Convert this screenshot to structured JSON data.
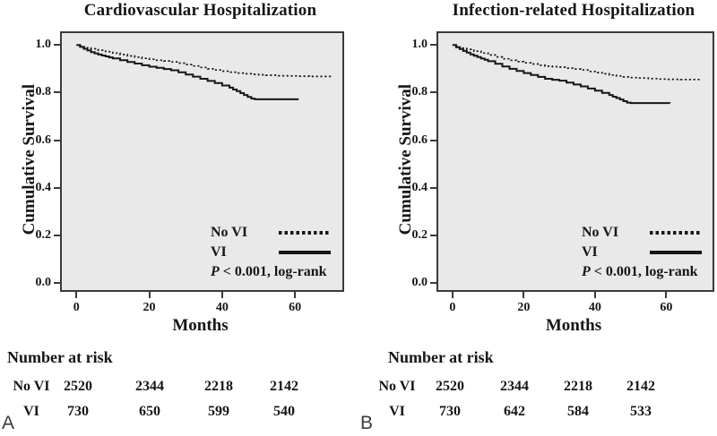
{
  "colors": {
    "plot_background": "#e9e9e9",
    "axis": "#3a3a3a",
    "curve": "#161616",
    "panel_letter": "#3c3c3c"
  },
  "chart_data": [
    {
      "type": "line",
      "subtype": "kaplan-meier-step",
      "panel_label": "A",
      "title": "Cardiovascular Hospitalization",
      "xlabel": "Months",
      "ylabel": "Cumulative Survival",
      "xlim": [
        -4,
        73
      ],
      "ylim": [
        -0.03,
        1.05
      ],
      "grid": false,
      "legend_position": "inside lower-right",
      "xticks": [
        {
          "v": 0,
          "label": "0"
        },
        {
          "v": 20,
          "label": "20"
        },
        {
          "v": 40,
          "label": "40"
        },
        {
          "v": 60,
          "label": "60"
        }
      ],
      "yticks": [
        {
          "v": 1.0,
          "label": "1.0"
        },
        {
          "v": 0.8,
          "label": "0.8"
        },
        {
          "v": 0.6,
          "label": "0.6"
        },
        {
          "v": 0.4,
          "label": "0.4"
        },
        {
          "v": 0.2,
          "label": "0.2"
        },
        {
          "v": 0.0,
          "label": "0.0"
        }
      ],
      "p_value": {
        "italic": "P",
        "text": " < 0.001, log-rank"
      },
      "series": [
        {
          "name": "No VI",
          "style": "dotted",
          "points": [
            [
              0,
              1.0
            ],
            [
              1,
              0.996
            ],
            [
              2,
              0.992
            ],
            [
              3,
              0.988
            ],
            [
              4,
              0.984
            ],
            [
              6,
              0.978
            ],
            [
              8,
              0.972
            ],
            [
              10,
              0.966
            ],
            [
              12,
              0.96
            ],
            [
              14,
              0.954
            ],
            [
              16,
              0.949
            ],
            [
              18,
              0.944
            ],
            [
              20,
              0.94
            ],
            [
              22,
              0.936
            ],
            [
              24,
              0.933
            ],
            [
              26,
              0.929
            ],
            [
              28,
              0.924
            ],
            [
              30,
              0.918
            ],
            [
              32,
              0.912
            ],
            [
              34,
              0.906
            ],
            [
              36,
              0.9
            ],
            [
              38,
              0.895
            ],
            [
              40,
              0.89
            ],
            [
              42,
              0.886
            ],
            [
              44,
              0.882
            ],
            [
              46,
              0.879
            ],
            [
              48,
              0.877
            ],
            [
              50,
              0.875
            ],
            [
              52,
              0.873
            ],
            [
              55,
              0.871
            ],
            [
              58,
              0.87
            ],
            [
              61,
              0.869
            ],
            [
              64,
              0.868
            ],
            [
              70,
              0.867
            ]
          ]
        },
        {
          "name": "VI",
          "style": "solid",
          "points": [
            [
              0,
              1.0
            ],
            [
              1,
              0.992
            ],
            [
              2,
              0.984
            ],
            [
              3,
              0.977
            ],
            [
              4,
              0.97
            ],
            [
              5,
              0.965
            ],
            [
              6,
              0.96
            ],
            [
              7,
              0.956
            ],
            [
              8,
              0.952
            ],
            [
              9,
              0.948
            ],
            [
              10,
              0.944
            ],
            [
              12,
              0.936
            ],
            [
              14,
              0.929
            ],
            [
              16,
              0.922
            ],
            [
              18,
              0.915
            ],
            [
              20,
              0.909
            ],
            [
              22,
              0.904
            ],
            [
              24,
              0.899
            ],
            [
              26,
              0.894
            ],
            [
              28,
              0.885
            ],
            [
              30,
              0.876
            ],
            [
              32,
              0.867
            ],
            [
              34,
              0.858
            ],
            [
              36,
              0.849
            ],
            [
              38,
              0.84
            ],
            [
              40,
              0.83
            ],
            [
              42,
              0.821
            ],
            [
              43,
              0.813
            ],
            [
              44,
              0.806
            ],
            [
              45,
              0.798
            ],
            [
              46,
              0.79
            ],
            [
              47,
              0.782
            ],
            [
              48,
              0.775
            ],
            [
              49,
              0.772
            ],
            [
              61,
              0.772
            ]
          ]
        }
      ],
      "number_at_risk": {
        "heading": "Number at risk",
        "timepoints": [
          0,
          20,
          40,
          60
        ],
        "rows": [
          {
            "label": "No VI",
            "values": [
              "2520",
              "2344",
              "2218",
              "2142"
            ]
          },
          {
            "label": "VI",
            "values": [
              "730",
              "650",
              "599",
              "540"
            ]
          }
        ]
      }
    },
    {
      "type": "line",
      "subtype": "kaplan-meier-step",
      "panel_label": "B",
      "title": "Infection-related Hospitalization",
      "xlabel": "Months",
      "ylabel": "Cumulative Survival",
      "xlim": [
        -4,
        73
      ],
      "ylim": [
        -0.03,
        1.05
      ],
      "grid": false,
      "legend_position": "inside lower-right",
      "xticks": [
        {
          "v": 0,
          "label": "0"
        },
        {
          "v": 20,
          "label": "20"
        },
        {
          "v": 40,
          "label": "40"
        },
        {
          "v": 60,
          "label": "60"
        }
      ],
      "yticks": [
        {
          "v": 1.0,
          "label": "1.0"
        },
        {
          "v": 0.8,
          "label": "0.8"
        },
        {
          "v": 0.6,
          "label": "0.6"
        },
        {
          "v": 0.4,
          "label": "0.4"
        },
        {
          "v": 0.2,
          "label": "0.2"
        },
        {
          "v": 0.0,
          "label": "0.0"
        }
      ],
      "p_value": {
        "italic": "P",
        "text": " < 0.001, log-rank"
      },
      "series": [
        {
          "name": "No VI",
          "style": "dotted",
          "points": [
            [
              0,
              1.0
            ],
            [
              1,
              0.995
            ],
            [
              2,
              0.991
            ],
            [
              3,
              0.986
            ],
            [
              4,
              0.982
            ],
            [
              6,
              0.974
            ],
            [
              8,
              0.966
            ],
            [
              10,
              0.958
            ],
            [
              12,
              0.95
            ],
            [
              14,
              0.942
            ],
            [
              16,
              0.936
            ],
            [
              18,
              0.93
            ],
            [
              20,
              0.925
            ],
            [
              22,
              0.92
            ],
            [
              24,
              0.915
            ],
            [
              26,
              0.911
            ],
            [
              28,
              0.909
            ],
            [
              30,
              0.907
            ],
            [
              32,
              0.903
            ],
            [
              34,
              0.899
            ],
            [
              36,
              0.895
            ],
            [
              38,
              0.889
            ],
            [
              40,
              0.884
            ],
            [
              42,
              0.879
            ],
            [
              44,
              0.874
            ],
            [
              46,
              0.87
            ],
            [
              48,
              0.866
            ],
            [
              50,
              0.863
            ],
            [
              52,
              0.861
            ],
            [
              55,
              0.859
            ],
            [
              58,
              0.857
            ],
            [
              60,
              0.856
            ],
            [
              64,
              0.855
            ],
            [
              70,
              0.855
            ]
          ]
        },
        {
          "name": "VI",
          "style": "solid",
          "points": [
            [
              0,
              1.0
            ],
            [
              1,
              0.991
            ],
            [
              2,
              0.983
            ],
            [
              3,
              0.975
            ],
            [
              4,
              0.968
            ],
            [
              5,
              0.961
            ],
            [
              6,
              0.955
            ],
            [
              7,
              0.949
            ],
            [
              8,
              0.943
            ],
            [
              9,
              0.938
            ],
            [
              10,
              0.932
            ],
            [
              12,
              0.921
            ],
            [
              14,
              0.91
            ],
            [
              16,
              0.9
            ],
            [
              18,
              0.891
            ],
            [
              20,
              0.882
            ],
            [
              22,
              0.874
            ],
            [
              24,
              0.866
            ],
            [
              26,
              0.858
            ],
            [
              28,
              0.854
            ],
            [
              30,
              0.85
            ],
            [
              32,
              0.842
            ],
            [
              34,
              0.834
            ],
            [
              36,
              0.826
            ],
            [
              38,
              0.817
            ],
            [
              40,
              0.808
            ],
            [
              42,
              0.799
            ],
            [
              44,
              0.79
            ],
            [
              45,
              0.783
            ],
            [
              46,
              0.777
            ],
            [
              47,
              0.771
            ],
            [
              48,
              0.764
            ],
            [
              49,
              0.758
            ],
            [
              50,
              0.756
            ],
            [
              61,
              0.755
            ]
          ]
        }
      ],
      "number_at_risk": {
        "heading": "Number at risk",
        "timepoints": [
          0,
          20,
          40,
          60
        ],
        "rows": [
          {
            "label": "No VI",
            "values": [
              "2520",
              "2344",
              "2218",
              "2142"
            ]
          },
          {
            "label": "VI",
            "values": [
              "730",
              "642",
              "584",
              "533"
            ]
          }
        ]
      }
    }
  ]
}
